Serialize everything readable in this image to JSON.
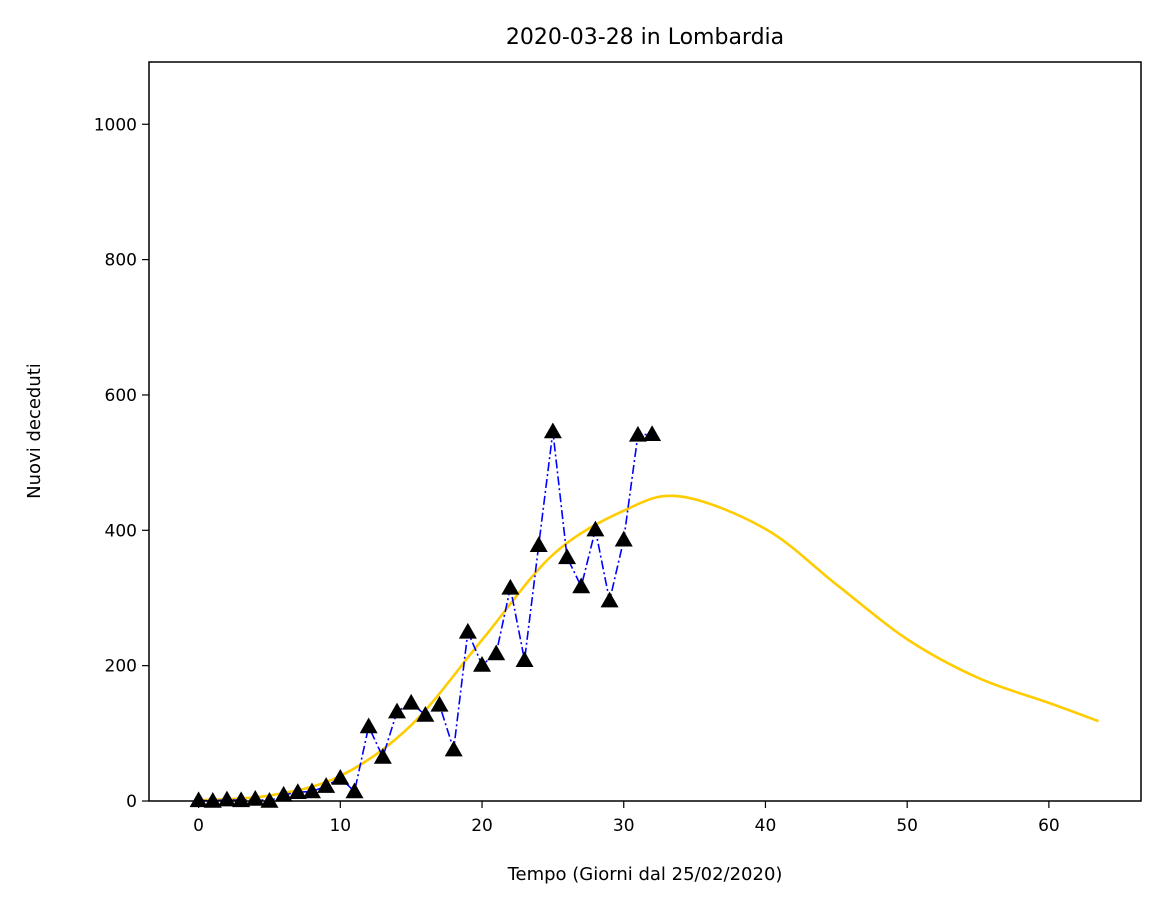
{
  "chart_data": {
    "type": "line",
    "title": "2020-03-28 in Lombardia",
    "xlabel": "Tempo (Giorni dal 25/02/2020)",
    "ylabel": "Nuovi deceduti",
    "xlim": [
      -3.5,
      66.5
    ],
    "ylim": [
      0,
      1092
    ],
    "x_ticks": [
      0,
      10,
      20,
      30,
      40,
      50,
      60
    ],
    "y_ticks": [
      0,
      200,
      400,
      600,
      800,
      1000
    ],
    "grid": false,
    "series": [
      {
        "style": "dash-dot line with triangle markers",
        "color": "#0000ff",
        "marker_color": "#000000",
        "points": [
          [
            0,
            1
          ],
          [
            1,
            0
          ],
          [
            2,
            2
          ],
          [
            3,
            1
          ],
          [
            4,
            3
          ],
          [
            5,
            0
          ],
          [
            6,
            9
          ],
          [
            7,
            13
          ],
          [
            8,
            14
          ],
          [
            9,
            22
          ],
          [
            10,
            34
          ],
          [
            11,
            14
          ],
          [
            12,
            110
          ],
          [
            13,
            65
          ],
          [
            14,
            132
          ],
          [
            15,
            145
          ],
          [
            16,
            127
          ],
          [
            17,
            142
          ],
          [
            18,
            76
          ],
          [
            19,
            250
          ],
          [
            20,
            201
          ],
          [
            21,
            218
          ],
          [
            22,
            315
          ],
          [
            23,
            208
          ],
          [
            24,
            378
          ],
          [
            25,
            546
          ],
          [
            26,
            360
          ],
          [
            27,
            317
          ],
          [
            28,
            401
          ],
          [
            29,
            296
          ],
          [
            30,
            386
          ],
          [
            31,
            541
          ],
          [
            32,
            542
          ]
        ]
      },
      {
        "style": "solid fitted curve",
        "color": "#ffcc00",
        "points": [
          [
            0,
            1
          ],
          [
            5,
            8
          ],
          [
            10,
            37
          ],
          [
            15,
            112
          ],
          [
            20,
            238
          ],
          [
            25,
            364
          ],
          [
            30,
            429
          ],
          [
            34,
            450
          ],
          [
            40,
            402
          ],
          [
            45,
            320
          ],
          [
            50,
            239
          ],
          [
            55,
            182
          ],
          [
            60,
            145
          ],
          [
            63.5,
            118
          ]
        ]
      }
    ]
  }
}
